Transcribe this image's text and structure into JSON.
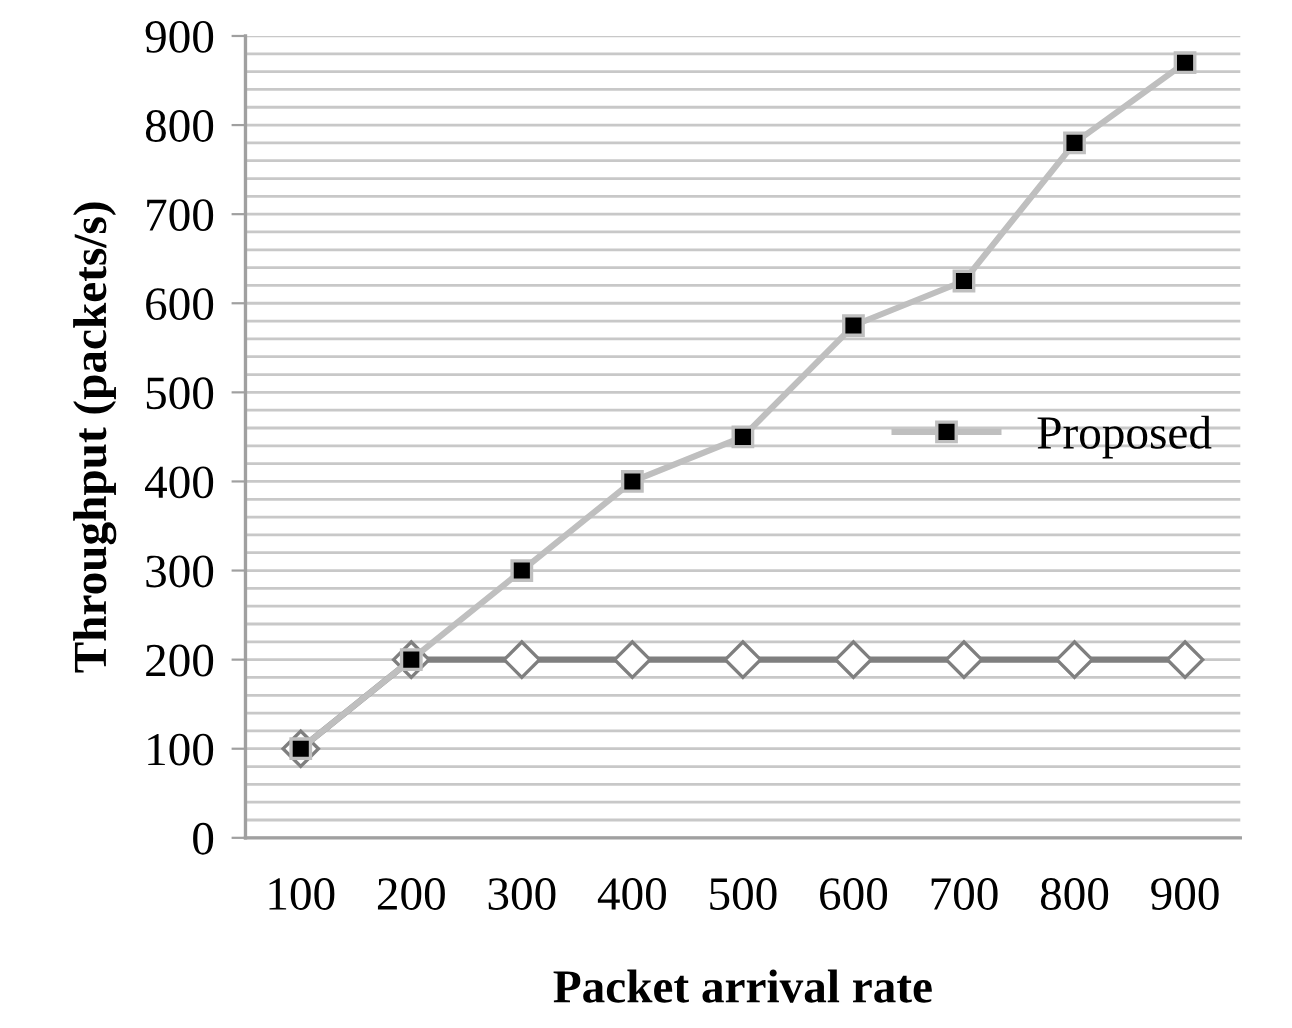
{
  "chart_data": {
    "type": "line",
    "xlabel": "Packet arrival rate",
    "ylabel": "Throughput (packets/s)",
    "categories": [
      "100",
      "200",
      "300",
      "400",
      "500",
      "600",
      "700",
      "800",
      "900"
    ],
    "series": [
      {
        "color": "#7f7f7f",
        "marker": "diamond",
        "values": [
          100,
          200,
          200,
          200,
          200,
          200,
          200,
          200,
          200
        ]
      },
      {
        "name": "Proposed",
        "color": "#bfbfbf",
        "marker": "square",
        "values": [
          100,
          200,
          300,
          400,
          450,
          575,
          625,
          780,
          870
        ]
      }
    ],
    "ylim": [
      0,
      900
    ],
    "yticks": [
      0,
      {
        "value": 20,
        "label": null
      },
      {
        "value": 40,
        "label": null
      },
      {
        "value": 60,
        "label": null
      },
      {
        "value": 80,
        "label": null
      },
      100,
      {
        "value": 120,
        "label": null
      },
      {
        "value": 140,
        "label": null
      },
      {
        "value": 160,
        "label": null
      },
      {
        "value": 180,
        "label": null
      },
      200,
      {
        "value": 220,
        "label": null
      },
      {
        "value": 240,
        "label": null
      },
      {
        "value": 260,
        "label": null
      },
      {
        "value": 280,
        "label": null
      },
      300,
      {
        "value": 320,
        "label": null
      },
      {
        "value": 340,
        "label": null
      },
      {
        "value": 360,
        "label": null
      },
      {
        "value": 380,
        "label": null
      },
      400,
      {
        "value": 420,
        "label": null
      },
      {
        "value": 440,
        "label": null
      },
      {
        "value": 460,
        "label": null
      },
      {
        "value": 480,
        "label": null
      },
      500,
      {
        "value": 520,
        "label": null
      },
      {
        "value": 540,
        "label": null
      },
      {
        "value": 560,
        "label": null
      },
      {
        "value": 580,
        "label": null
      },
      600,
      {
        "value": 620,
        "label": null
      },
      {
        "value": 640,
        "label": null
      },
      {
        "value": 660,
        "label": null
      },
      {
        "value": 680,
        "label": null
      },
      700,
      {
        "value": 720,
        "label": null
      },
      {
        "value": 740,
        "label": null
      },
      {
        "value": 760,
        "label": null
      },
      {
        "value": 780,
        "label": null
      },
      800,
      {
        "value": 820,
        "label": null
      },
      {
        "value": 840,
        "label": null
      },
      {
        "value": 860,
        "label": null
      },
      {
        "value": 880,
        "label": null
      },
      900
    ],
    "grid": "y",
    "legend": "right",
    "line_style": "solid"
  }
}
